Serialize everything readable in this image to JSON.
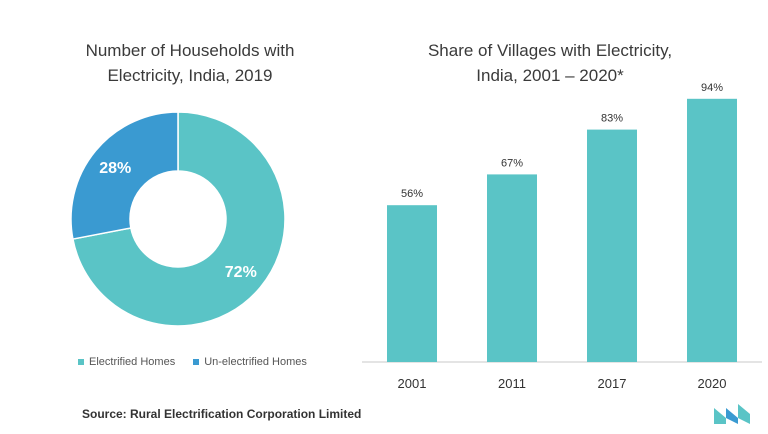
{
  "colors": {
    "teal": "#5AC4C6",
    "blue": "#3A9AD1",
    "axis": "#c8c8c8"
  },
  "chart_data": [
    {
      "type": "pie",
      "title": "Number of Households with\nElectricity, India, 2019",
      "categories": [
        "Electrified Homes",
        "Un-electrified Homes"
      ],
      "values": [
        72,
        28
      ],
      "labels": [
        "72%",
        "28%"
      ],
      "legend": "bottom"
    },
    {
      "type": "bar",
      "title": "Share of Villages with Electricity,\nIndia, 2001 – 2020*",
      "categories": [
        "2001",
        "2011",
        "2017",
        "2020"
      ],
      "values": [
        56,
        67,
        83,
        94
      ],
      "labels": [
        "56%",
        "67%",
        "83%",
        "94%"
      ],
      "ylim": [
        0,
        100
      ]
    }
  ],
  "source": "Source: Rural Electrification Corporation Limited",
  "logo_icon": "mordor-logo-icon"
}
